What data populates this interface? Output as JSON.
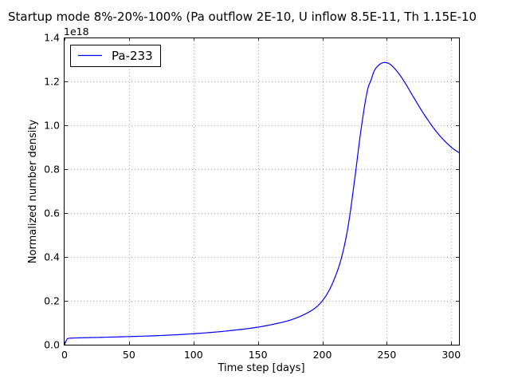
{
  "chart_data": {
    "type": "line",
    "title": "Startup mode 8%-20%-100% (Pa outflow 2E-10, U inflow 8.5E-11, Th 1.15E-10",
    "xlabel": "Time step [days]",
    "ylabel": "Normalized number density",
    "y_multiplier_label": "1e18",
    "xlim": [
      0,
      306
    ],
    "ylim": [
      0,
      1.4
    ],
    "x_ticks": [
      0,
      50,
      100,
      150,
      200,
      250,
      300
    ],
    "y_ticks": [
      0.0,
      0.2,
      0.4,
      0.6,
      0.8,
      1.0,
      1.2,
      1.4
    ],
    "x_tick_labels": [
      "0",
      "50",
      "100",
      "150",
      "200",
      "250",
      "300"
    ],
    "y_tick_labels": [
      "0.0",
      "0.2",
      "0.4",
      "0.6",
      "0.8",
      "1.0",
      "1.2",
      "1.4"
    ],
    "grid": true,
    "legend_position": "top-left",
    "series": [
      {
        "name": "Pa-233",
        "color": "#0000ff",
        "x": [
          0,
          1,
          2,
          3,
          5,
          10,
          25,
          50,
          75,
          100,
          125,
          150,
          165,
          175,
          185,
          195,
          200,
          205,
          210,
          215,
          220,
          225,
          230,
          235,
          238,
          240,
          243,
          246,
          248,
          250,
          252,
          255,
          260,
          265,
          270,
          280,
          290,
          300,
          306
        ],
        "values": [
          0.0,
          0.015,
          0.025,
          0.029,
          0.03,
          0.031,
          0.033,
          0.037,
          0.042,
          0.05,
          0.062,
          0.08,
          0.097,
          0.112,
          0.135,
          0.17,
          0.2,
          0.245,
          0.31,
          0.4,
          0.54,
          0.75,
          0.98,
          1.16,
          1.21,
          1.245,
          1.27,
          1.283,
          1.286,
          1.285,
          1.28,
          1.265,
          1.23,
          1.185,
          1.135,
          1.04,
          0.96,
          0.9,
          0.875
        ]
      }
    ]
  }
}
